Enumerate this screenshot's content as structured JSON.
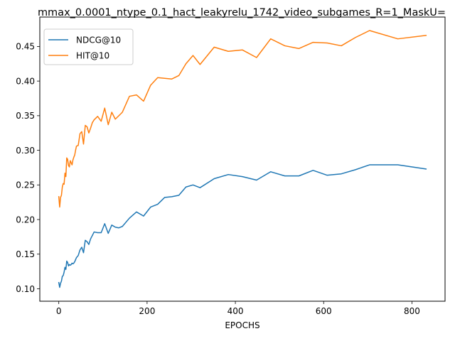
{
  "chart_data": {
    "type": "line",
    "title": "mmax_0.0001_ntype_0.1_hact_leakyrelu_1742_video_subgames_R=1_MaskU=",
    "xlabel": "EPOCHS",
    "ylabel": "",
    "xlim": [
      -43,
      875
    ],
    "ylim": [
      0.082,
      0.4925
    ],
    "xticks": [
      0,
      200,
      400,
      600,
      800
    ],
    "yticks": [
      0.1,
      0.15,
      0.2,
      0.25,
      0.3,
      0.35,
      0.4,
      0.45
    ],
    "xtick_labels": [
      "0",
      "200",
      "400",
      "600",
      "800"
    ],
    "ytick_labels": [
      "0.10",
      "0.15",
      "0.20",
      "0.25",
      "0.30",
      "0.35",
      "0.40",
      "0.45"
    ],
    "grid": false,
    "legend_position": "top-left",
    "series": [
      {
        "name": "NDCG@10",
        "color": "#1f77b4",
        "x": [
          0,
          2,
          4,
          6,
          8,
          10,
          12,
          14,
          16,
          18,
          20,
          22,
          24,
          26,
          28,
          30,
          32,
          34,
          36,
          38,
          40,
          44,
          48,
          52,
          56,
          60,
          64,
          68,
          72,
          76,
          80,
          88,
          96,
          104,
          112,
          120,
          128,
          136,
          144,
          160,
          176,
          192,
          208,
          224,
          240,
          256,
          272,
          288,
          304,
          320,
          352,
          384,
          416,
          448,
          480,
          512,
          544,
          576,
          608,
          640,
          672,
          704,
          768,
          832
        ],
        "y": [
          0.109,
          0.102,
          0.108,
          0.111,
          0.118,
          0.119,
          0.124,
          0.131,
          0.128,
          0.14,
          0.138,
          0.133,
          0.135,
          0.134,
          0.135,
          0.137,
          0.136,
          0.137,
          0.139,
          0.142,
          0.145,
          0.148,
          0.156,
          0.16,
          0.152,
          0.17,
          0.168,
          0.164,
          0.172,
          0.177,
          0.182,
          0.181,
          0.181,
          0.194,
          0.18,
          0.192,
          0.189,
          0.188,
          0.19,
          0.202,
          0.211,
          0.205,
          0.218,
          0.222,
          0.232,
          0.233,
          0.235,
          0.247,
          0.25,
          0.246,
          0.259,
          0.265,
          0.262,
          0.257,
          0.269,
          0.263,
          0.263,
          0.271,
          0.264,
          0.266,
          0.272,
          0.279,
          0.279,
          0.273
        ]
      },
      {
        "name": "HIT@10",
        "color": "#ff7f0e",
        "x": [
          0,
          2,
          4,
          6,
          8,
          10,
          12,
          14,
          16,
          18,
          20,
          22,
          24,
          26,
          28,
          30,
          32,
          34,
          36,
          38,
          40,
          44,
          48,
          52,
          56,
          60,
          64,
          68,
          72,
          76,
          80,
          88,
          96,
          104,
          112,
          120,
          128,
          136,
          144,
          160,
          176,
          192,
          208,
          224,
          240,
          256,
          272,
          288,
          304,
          320,
          352,
          384,
          416,
          448,
          480,
          512,
          544,
          576,
          608,
          640,
          672,
          704,
          768,
          832
        ],
        "y": [
          0.233,
          0.218,
          0.232,
          0.235,
          0.247,
          0.252,
          0.251,
          0.267,
          0.262,
          0.289,
          0.287,
          0.278,
          0.276,
          0.285,
          0.282,
          0.279,
          0.286,
          0.29,
          0.293,
          0.3,
          0.306,
          0.307,
          0.324,
          0.327,
          0.309,
          0.336,
          0.334,
          0.325,
          0.332,
          0.34,
          0.344,
          0.349,
          0.342,
          0.361,
          0.337,
          0.355,
          0.345,
          0.35,
          0.355,
          0.378,
          0.38,
          0.371,
          0.394,
          0.405,
          0.404,
          0.403,
          0.408,
          0.425,
          0.437,
          0.424,
          0.449,
          0.443,
          0.445,
          0.434,
          0.461,
          0.451,
          0.447,
          0.456,
          0.455,
          0.451,
          0.463,
          0.473,
          0.461,
          0.466
        ]
      }
    ]
  }
}
